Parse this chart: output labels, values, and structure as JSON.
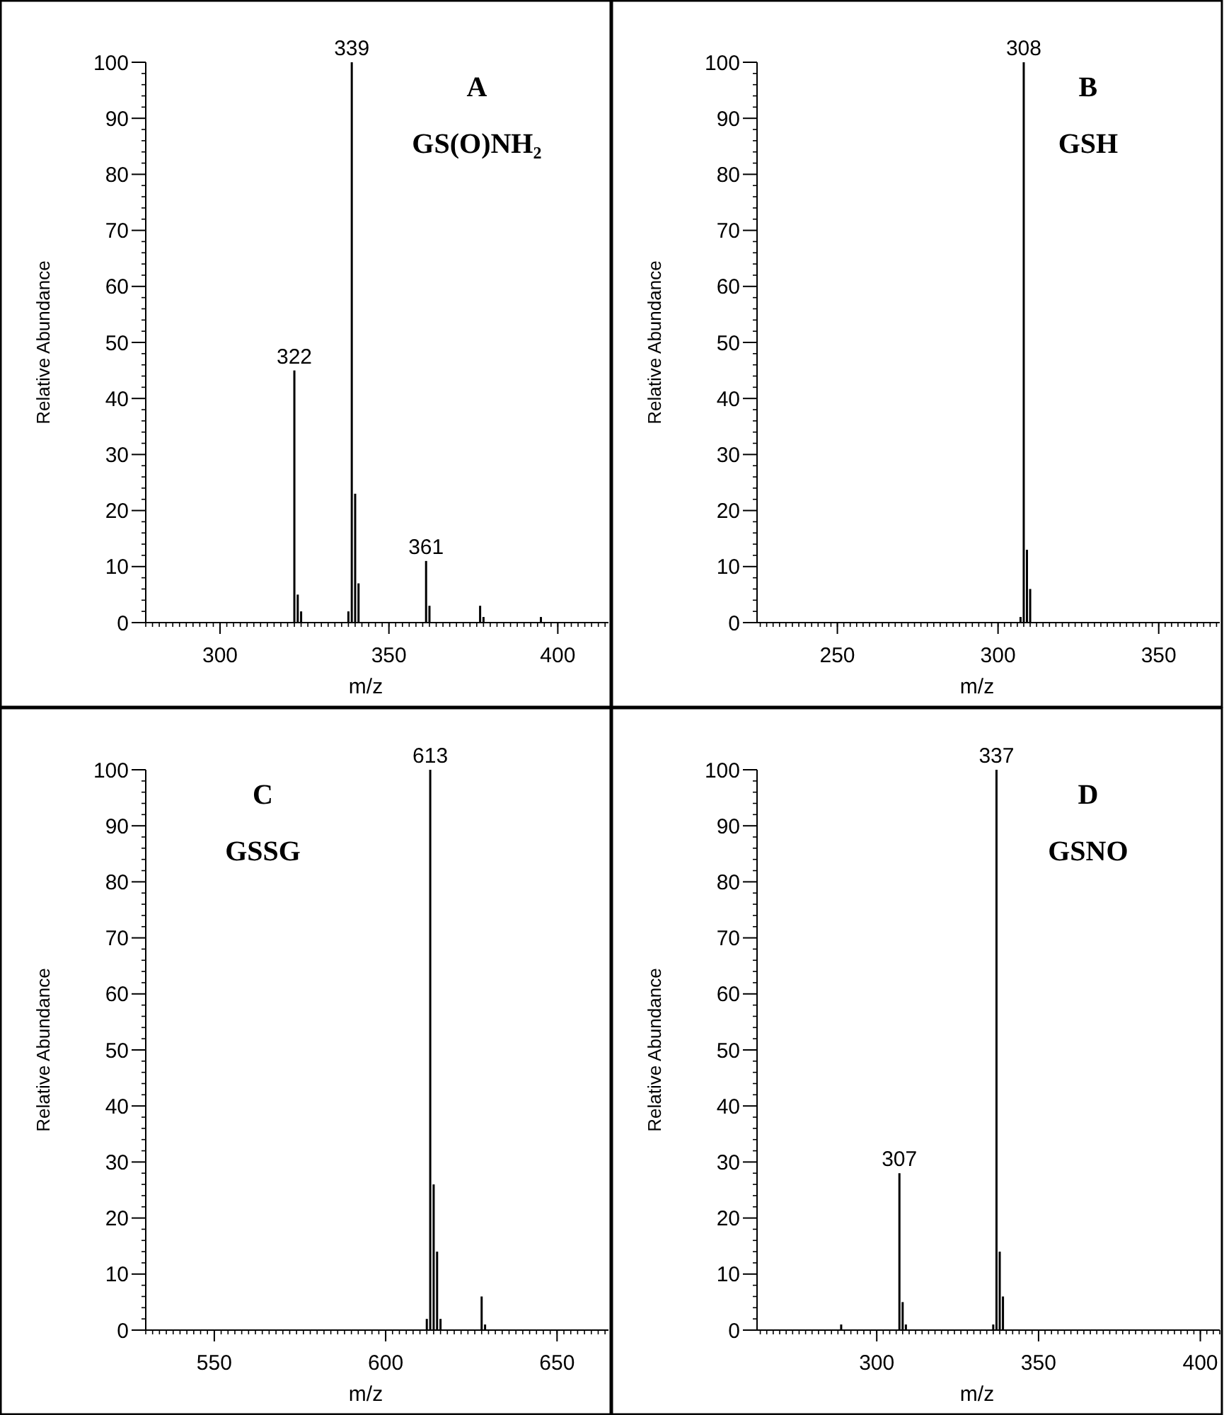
{
  "chart_data": [
    {
      "type": "bar",
      "title": "A",
      "subtitle": "GS(O)NH₂",
      "xlabel": "m/z",
      "ylabel": "Relative Abundance",
      "xlim": [
        278,
        415
      ],
      "xticks": [
        300,
        350,
        400
      ],
      "ylim": [
        0,
        100
      ],
      "yticks": [
        0,
        10,
        20,
        30,
        40,
        50,
        60,
        70,
        80,
        90,
        100
      ],
      "grid": false,
      "series": [
        {
          "color": "#000000",
          "x": [
            322,
            323,
            324,
            338,
            339,
            340,
            341,
            361,
            362,
            377,
            378,
            395
          ],
          "values": [
            45,
            5,
            2,
            2,
            100,
            23,
            7,
            11,
            3,
            3,
            1,
            1
          ]
        }
      ],
      "annotations": [
        {
          "text": "322",
          "x": 322,
          "y": 45
        },
        {
          "text": "339",
          "x": 339,
          "y": 100
        },
        {
          "text": "361",
          "x": 361,
          "y": 11
        }
      ]
    },
    {
      "type": "bar",
      "title": "B",
      "subtitle": "GSH",
      "xlabel": "m/z",
      "ylabel": "Relative Abundance",
      "xlim": [
        225,
        369
      ],
      "xticks": [
        250,
        300,
        350
      ],
      "ylim": [
        0,
        100
      ],
      "yticks": [
        0,
        10,
        20,
        30,
        40,
        50,
        60,
        70,
        80,
        90,
        100
      ],
      "grid": false,
      "series": [
        {
          "color": "#000000",
          "x": [
            307,
            308,
            309,
            310
          ],
          "values": [
            1,
            100,
            13,
            6
          ]
        }
      ],
      "annotations": [
        {
          "text": "308",
          "x": 308,
          "y": 100
        }
      ]
    },
    {
      "type": "bar",
      "title": "C",
      "subtitle": "GSSG",
      "xlabel": "m/z",
      "ylabel": "Relative Abundance",
      "xlim": [
        530,
        665
      ],
      "xticks": [
        550,
        600,
        650
      ],
      "ylim": [
        0,
        100
      ],
      "yticks": [
        0,
        10,
        20,
        30,
        40,
        50,
        60,
        70,
        80,
        90,
        100
      ],
      "grid": false,
      "series": [
        {
          "color": "#000000",
          "x": [
            612,
            613,
            614,
            615,
            616,
            628,
            629
          ],
          "values": [
            2,
            100,
            26,
            14,
            2,
            6,
            1
          ]
        }
      ],
      "annotations": [
        {
          "text": "613",
          "x": 613,
          "y": 100
        }
      ]
    },
    {
      "type": "bar",
      "title": "D",
      "subtitle": "GSNO",
      "xlabel": "m/z",
      "ylabel": "Relative Abundance",
      "xlim": [
        263,
        406
      ],
      "xticks": [
        300,
        350,
        400
      ],
      "ylim": [
        0,
        100
      ],
      "yticks": [
        0,
        10,
        20,
        30,
        40,
        50,
        60,
        70,
        80,
        90,
        100
      ],
      "grid": false,
      "series": [
        {
          "color": "#000000",
          "x": [
            289,
            307,
            308,
            309,
            336,
            337,
            338,
            339
          ],
          "values": [
            1,
            28,
            5,
            1,
            1,
            100,
            14,
            6
          ]
        }
      ],
      "annotations": [
        {
          "text": "307",
          "x": 307,
          "y": 28
        },
        {
          "text": "337",
          "x": 337,
          "y": 100
        }
      ]
    }
  ]
}
